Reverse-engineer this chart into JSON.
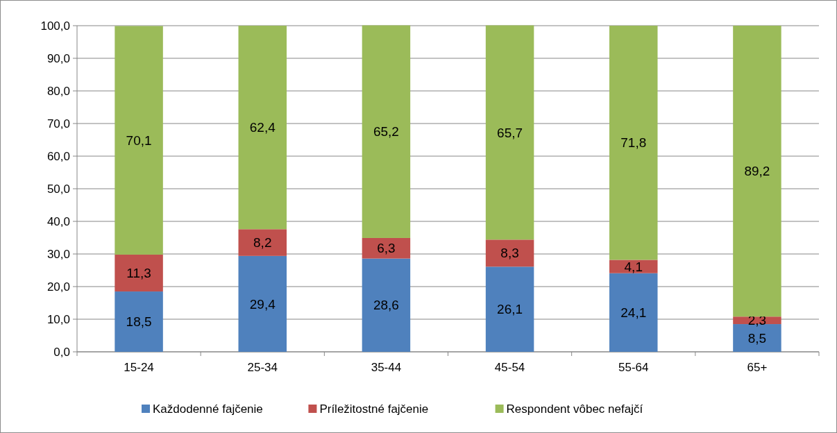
{
  "chart_data": {
    "type": "bar",
    "stacked": true,
    "categories": [
      "15-24",
      "25-34",
      "35-44",
      "45-54",
      "55-64",
      "65+"
    ],
    "series": [
      {
        "name": "Každodenné fajčenie",
        "color": "#4f81bd",
        "values": [
          18.5,
          29.4,
          28.6,
          26.1,
          24.1,
          8.5
        ],
        "value_labels": [
          "18,5",
          "29,4",
          "28,6",
          "26,1",
          "24,1",
          "8,5"
        ]
      },
      {
        "name": "Príležitostné fajčenie",
        "color": "#c0504d",
        "values": [
          11.3,
          8.2,
          6.3,
          8.3,
          4.1,
          2.3
        ],
        "value_labels": [
          "11,3",
          "8,2",
          "6,3",
          "8,3",
          "4,1",
          "2,3"
        ]
      },
      {
        "name": "Respondent vôbec nefajčí",
        "color": "#9bbb59",
        "values": [
          70.1,
          62.4,
          65.2,
          65.7,
          71.8,
          89.2
        ],
        "value_labels": [
          "70,1",
          "62,4",
          "65,2",
          "65,7",
          "71,8",
          "89,2"
        ]
      }
    ],
    "ylim": [
      0,
      100
    ],
    "yticks": [
      {
        "value": 0,
        "label": "0,0"
      },
      {
        "value": 10,
        "label": "10,0"
      },
      {
        "value": 20,
        "label": "20,0"
      },
      {
        "value": 30,
        "label": "30,0"
      },
      {
        "value": 40,
        "label": "40,0"
      },
      {
        "value": 50,
        "label": "50,0"
      },
      {
        "value": 60,
        "label": "60,0"
      },
      {
        "value": 70,
        "label": "70,0"
      },
      {
        "value": 80,
        "label": "80,0"
      },
      {
        "value": 90,
        "label": "90,0"
      },
      {
        "value": 100,
        "label": "100,0"
      }
    ],
    "grid": "y",
    "legend": "bottom"
  }
}
